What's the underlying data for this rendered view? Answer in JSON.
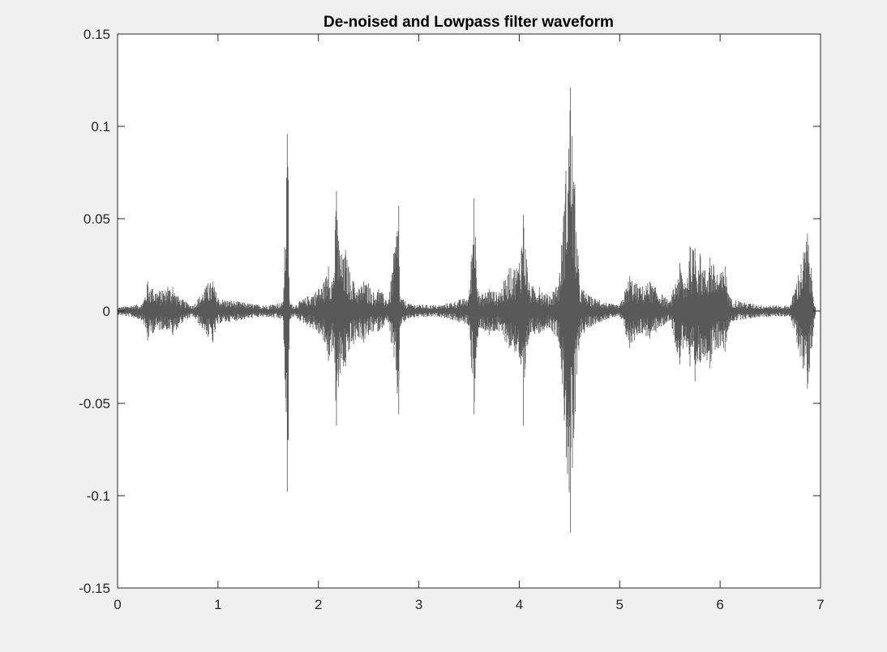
{
  "chart_data": {
    "type": "line",
    "title": "De-noised and Lowpass filter waveform",
    "xlabel": "",
    "ylabel": "",
    "xlim": [
      0,
      7
    ],
    "ylim": [
      -0.15,
      0.15
    ],
    "x_ticks": [
      0,
      1,
      2,
      3,
      4,
      5,
      6,
      7
    ],
    "y_ticks": [
      0.15,
      0.1,
      0.05,
      0,
      -0.05,
      -0.1,
      -0.15
    ],
    "x_tick_labels": [
      "0",
      "1",
      "2",
      "3",
      "4",
      "5",
      "6",
      "7"
    ],
    "y_tick_labels": [
      "0.15",
      "0.1",
      "0.05",
      "0",
      "-0.05",
      "-0.1",
      "-0.15"
    ],
    "grid": false,
    "line_color": "#595959",
    "series": [
      {
        "x": [
          0.0,
          0.25,
          0.3,
          0.35,
          0.45,
          0.5,
          0.55,
          0.6,
          0.65,
          0.75,
          0.9,
          0.95,
          1.0,
          1.45,
          1.65,
          1.69,
          1.7,
          1.71,
          1.75,
          2.0,
          2.05,
          2.1,
          2.15,
          2.18,
          2.2,
          2.25,
          2.27,
          2.3,
          2.35,
          2.4,
          2.45,
          2.5,
          2.55,
          2.6,
          2.7,
          2.8,
          2.81,
          2.9,
          3.2,
          3.4,
          3.5,
          3.55,
          3.6,
          3.7,
          3.8,
          3.9,
          4.0,
          4.04,
          4.1,
          4.2,
          4.3,
          4.4,
          4.51,
          4.6,
          4.7,
          4.8,
          4.9,
          5.0,
          5.1,
          5.2,
          5.3,
          5.5,
          5.6,
          5.65,
          5.7,
          5.75,
          5.8,
          5.85,
          5.9,
          6.0,
          6.05,
          6.1,
          6.3,
          6.5,
          6.7,
          6.87,
          6.95
        ],
        "y_max": [
          0.002,
          0.004,
          0.016,
          0.012,
          0.011,
          0.013,
          0.013,
          0.008,
          0.006,
          0.003,
          0.015,
          0.016,
          0.007,
          0.003,
          0.005,
          0.096,
          0.071,
          0.006,
          0.003,
          0.012,
          0.015,
          0.024,
          0.018,
          0.065,
          0.038,
          0.028,
          0.033,
          0.024,
          0.016,
          0.012,
          0.016,
          0.015,
          0.01,
          0.012,
          0.006,
          0.057,
          0.008,
          0.004,
          0.003,
          0.006,
          0.008,
          0.061,
          0.008,
          0.012,
          0.01,
          0.023,
          0.026,
          0.052,
          0.014,
          0.013,
          0.008,
          0.018,
          0.121,
          0.014,
          0.008,
          0.006,
          0.004,
          0.003,
          0.019,
          0.013,
          0.016,
          0.005,
          0.026,
          0.015,
          0.035,
          0.034,
          0.031,
          0.022,
          0.029,
          0.02,
          0.024,
          0.007,
          0.004,
          0.003,
          0.003,
          0.042,
          0.002
        ],
        "y_min": [
          -0.002,
          -0.005,
          -0.016,
          -0.012,
          -0.01,
          -0.01,
          -0.013,
          -0.009,
          -0.006,
          -0.003,
          -0.014,
          -0.017,
          -0.007,
          -0.003,
          -0.005,
          -0.098,
          -0.07,
          -0.006,
          -0.003,
          -0.012,
          -0.016,
          -0.027,
          -0.02,
          -0.062,
          -0.041,
          -0.03,
          -0.03,
          -0.022,
          -0.018,
          -0.014,
          -0.017,
          -0.013,
          -0.011,
          -0.011,
          -0.006,
          -0.056,
          -0.009,
          -0.004,
          -0.003,
          -0.006,
          -0.008,
          -0.056,
          -0.009,
          -0.013,
          -0.011,
          -0.02,
          -0.025,
          -0.062,
          -0.013,
          -0.012,
          -0.009,
          -0.017,
          -0.12,
          -0.015,
          -0.009,
          -0.006,
          -0.004,
          -0.003,
          -0.02,
          -0.012,
          -0.015,
          -0.005,
          -0.029,
          -0.016,
          -0.03,
          -0.038,
          -0.028,
          -0.024,
          -0.031,
          -0.019,
          -0.022,
          -0.006,
          -0.004,
          -0.003,
          -0.003,
          -0.042,
          -0.002
        ]
      }
    ]
  }
}
